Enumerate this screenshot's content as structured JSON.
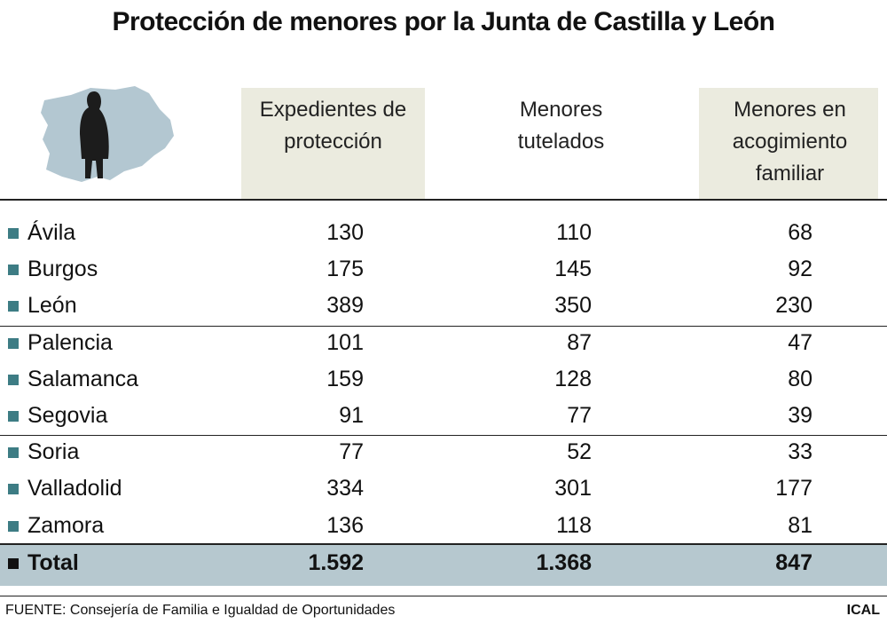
{
  "title": "Protección de menores por la Junta de Castilla y León",
  "table": {
    "header": [
      "Expedientes de protección",
      "Menores tutelados",
      "Menores en acogimiento familiar"
    ],
    "rows": [
      [
        "Ávila",
        "130",
        "110",
        "68"
      ],
      [
        "Burgos",
        "175",
        "145",
        "92"
      ],
      [
        "León",
        "389",
        "350",
        "230"
      ],
      [
        "Palencia",
        "101",
        "87",
        "47"
      ],
      [
        "Salamanca",
        "159",
        "128",
        "80"
      ],
      [
        "Segovia",
        "91",
        "77",
        "39"
      ],
      [
        "Soria",
        "77",
        "52",
        "33"
      ],
      [
        "Valladolid",
        "334",
        "301",
        "177"
      ],
      [
        "Zamora",
        "136",
        "118",
        "81"
      ]
    ],
    "total": [
      "Total",
      "1.592",
      "1.368",
      "847"
    ]
  },
  "source": "FUENTE: Consejería de Familia e Igualdad de Oportunidades",
  "credit": "ICAL"
}
